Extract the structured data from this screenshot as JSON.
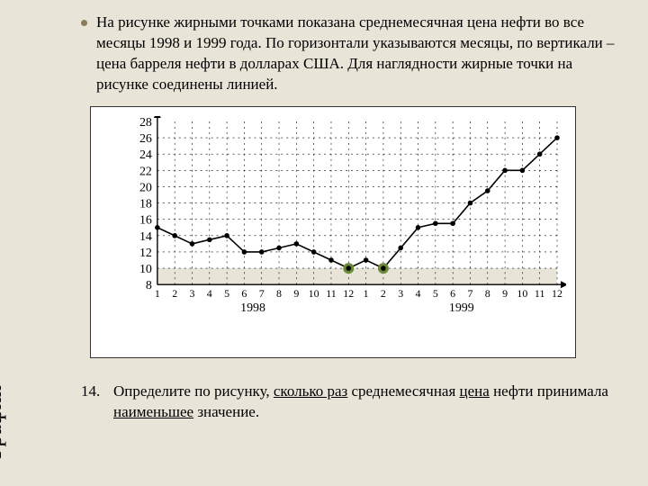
{
  "sideLabel": "График",
  "description": "На рисунке жирными точками показана среднемесячная цена нефти во все месяцы 1998 и 1999 года. По горизонтали указываются месяцы, по вертикали – цена барреля нефти в долларах США. Для наглядности жирные точки на рисунке соединены линией.",
  "question": {
    "number": "14.",
    "parts": [
      {
        "t": "Определите по рисунку, ",
        "u": false
      },
      {
        "t": "сколько раз",
        "u": true
      },
      {
        "t": " среднемесячная ",
        "u": false
      },
      {
        "t": "цена",
        "u": true
      },
      {
        "t": " нефти принимала ",
        "u": false
      },
      {
        "t": "наименьшее",
        "u": true
      },
      {
        "t": " значение.",
        "u": false
      }
    ]
  },
  "chart": {
    "type": "line",
    "background_color": "#ffffff",
    "band_color": "#e8e4d8",
    "grid_color": "#000000",
    "line_color": "#000000",
    "line_width": 1.6,
    "point_radius": 2.8,
    "highlight_radius": 6,
    "highlight_color": "#6a8a3a",
    "ylim": [
      8,
      28
    ],
    "ytick_step": 2,
    "yticks": [
      8,
      10,
      12,
      14,
      16,
      18,
      20,
      22,
      24,
      26,
      28
    ],
    "xticks": [
      1,
      2,
      3,
      4,
      5,
      6,
      7,
      8,
      9,
      10,
      11,
      12,
      1,
      2,
      3,
      4,
      5,
      6,
      7,
      8,
      9,
      10,
      11,
      12
    ],
    "years": [
      "1998",
      "1999"
    ],
    "values": [
      15,
      14,
      13,
      13.5,
      14,
      12,
      12,
      12.5,
      13,
      12,
      11,
      10,
      11,
      10,
      12.5,
      15,
      15.5,
      15.5,
      18,
      19.5,
      22,
      22,
      24,
      26
    ],
    "highlight_indices": [
      11,
      13
    ],
    "label_fontsize": 14,
    "tick_fontsize": 12
  },
  "colors": {
    "page_bg": "#e8e4d8",
    "bullet": "#8a7a5a",
    "text": "#000000"
  }
}
